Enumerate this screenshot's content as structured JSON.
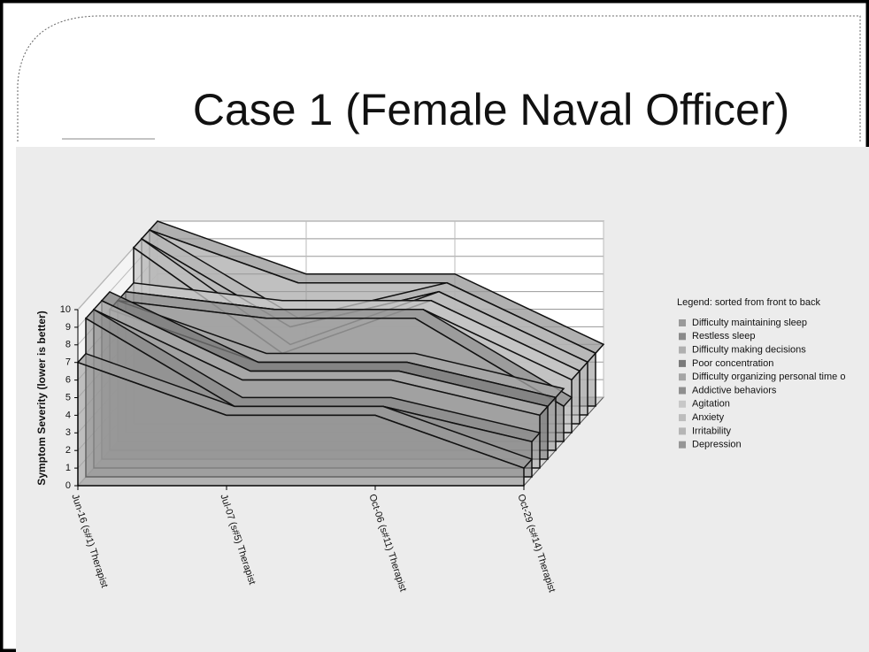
{
  "chart_data": {
    "type": "area3d",
    "title": "Case 1 (Female Naval Officer)",
    "y_label": "Symptom Severity (lower is better)",
    "legend_title": "Legend: sorted from front to back",
    "categories": [
      "Jun-16 (s#1) Therapist",
      "Jul-07 (s#5) Therapist",
      "Oct-06 (s#11) Therapist",
      "Oct-29 (s#14) Therapist"
    ],
    "ylim": [
      0,
      10
    ],
    "yticks": [
      0,
      1,
      2,
      3,
      4,
      5,
      6,
      7,
      8,
      9,
      10
    ],
    "grid": true,
    "series": [
      {
        "name": "Difficulty maintaining sleep",
        "color": "#9a9a9a",
        "values": [
          7,
          4,
          4,
          1
        ]
      },
      {
        "name": "Restless sleep",
        "color": "#8a8a8a",
        "values": [
          9,
          4,
          4,
          2
        ]
      },
      {
        "name": "Difficulty making decisions",
        "color": "#b0b0b0",
        "values": [
          9,
          5,
          5,
          3
        ]
      },
      {
        "name": "Poor concentration",
        "color": "#7a7a7a",
        "values": [
          9,
          5,
          5,
          3
        ]
      },
      {
        "name": "Difficulty organizing personal time o",
        "color": "#a5a5a5",
        "values": [
          8,
          5,
          5,
          3
        ]
      },
      {
        "name": "Addictive behaviors",
        "color": "#8f8f8f",
        "values": [
          8,
          7,
          7,
          2
        ]
      },
      {
        "name": "Agitation",
        "color": "#c8c8c8",
        "values": [
          8,
          7,
          7,
          3
        ]
      },
      {
        "name": "Anxiety",
        "color": "#bdbdbd",
        "values": [
          10,
          4,
          7,
          3
        ]
      },
      {
        "name": "Irritability",
        "color": "#b5b5b5",
        "values": [
          10,
          5,
          7,
          3
        ]
      },
      {
        "name": "Depression",
        "color": "#969696",
        "values": [
          10,
          7,
          7,
          3
        ]
      }
    ]
  }
}
